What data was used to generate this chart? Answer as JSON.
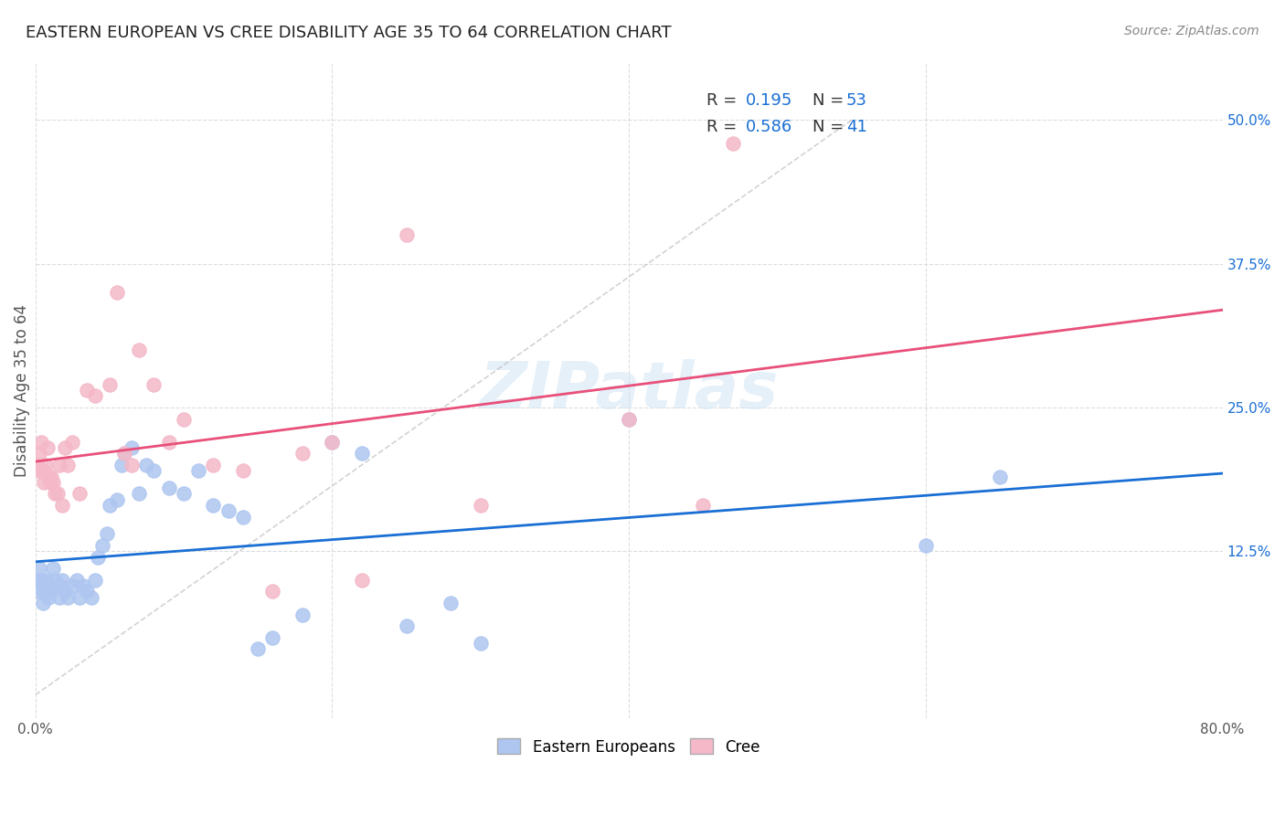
{
  "title": "EASTERN EUROPEAN VS CREE DISABILITY AGE 35 TO 64 CORRELATION CHART",
  "source": "Source: ZipAtlas.com",
  "xlabel": "",
  "ylabel": "Disability Age 35 to 64",
  "xlim": [
    0.0,
    0.8
  ],
  "ylim": [
    -0.02,
    0.55
  ],
  "xtick_labels": [
    "0.0%",
    "",
    "",
    "",
    "80.0%"
  ],
  "xtick_vals": [
    0.0,
    0.2,
    0.4,
    0.6,
    0.8
  ],
  "ytick_labels": [
    "12.5%",
    "25.0%",
    "37.5%",
    "50.0%"
  ],
  "ytick_vals": [
    0.125,
    0.25,
    0.375,
    0.5
  ],
  "r_eastern": 0.195,
  "n_eastern": 53,
  "r_cree": 0.586,
  "n_cree": 41,
  "eastern_color": "#aec6f0",
  "cree_color": "#f4b8c8",
  "trend_eastern_color": "#1a6fd4",
  "trend_cree_color": "#e8507a",
  "trend_eastern_dashed_color": "#c8c8c8",
  "background_color": "#ffffff",
  "grid_color": "#dddddd",
  "watermark": "ZIPatlas",
  "eastern_x": [
    0.001,
    0.002,
    0.003,
    0.004,
    0.005,
    0.006,
    0.007,
    0.008,
    0.009,
    0.01,
    0.012,
    0.013,
    0.015,
    0.016,
    0.017,
    0.018,
    0.02,
    0.022,
    0.025,
    0.028,
    0.03,
    0.032,
    0.035,
    0.038,
    0.04,
    0.042,
    0.045,
    0.048,
    0.05,
    0.055,
    0.058,
    0.06,
    0.065,
    0.07,
    0.075,
    0.08,
    0.09,
    0.1,
    0.11,
    0.12,
    0.13,
    0.14,
    0.15,
    0.16,
    0.18,
    0.2,
    0.22,
    0.25,
    0.28,
    0.3,
    0.4,
    0.6,
    0.65
  ],
  "eastern_y": [
    0.1,
    0.09,
    0.11,
    0.1,
    0.08,
    0.09,
    0.1,
    0.095,
    0.085,
    0.09,
    0.11,
    0.1,
    0.095,
    0.085,
    0.095,
    0.1,
    0.09,
    0.085,
    0.095,
    0.1,
    0.085,
    0.095,
    0.09,
    0.085,
    0.1,
    0.12,
    0.13,
    0.14,
    0.165,
    0.17,
    0.2,
    0.21,
    0.215,
    0.175,
    0.2,
    0.195,
    0.18,
    0.175,
    0.195,
    0.165,
    0.16,
    0.155,
    0.04,
    0.05,
    0.07,
    0.22,
    0.21,
    0.06,
    0.08,
    0.045,
    0.24,
    0.13,
    0.19
  ],
  "cree_x": [
    0.001,
    0.002,
    0.003,
    0.004,
    0.005,
    0.006,
    0.007,
    0.008,
    0.009,
    0.01,
    0.011,
    0.012,
    0.013,
    0.015,
    0.016,
    0.018,
    0.02,
    0.022,
    0.025,
    0.03,
    0.035,
    0.04,
    0.05,
    0.055,
    0.06,
    0.065,
    0.07,
    0.08,
    0.09,
    0.1,
    0.12,
    0.14,
    0.16,
    0.18,
    0.2,
    0.22,
    0.25,
    0.3,
    0.4,
    0.45,
    0.47
  ],
  "cree_y": [
    0.2,
    0.195,
    0.21,
    0.22,
    0.195,
    0.185,
    0.2,
    0.215,
    0.19,
    0.185,
    0.19,
    0.185,
    0.175,
    0.175,
    0.2,
    0.165,
    0.215,
    0.2,
    0.22,
    0.175,
    0.265,
    0.26,
    0.27,
    0.35,
    0.21,
    0.2,
    0.3,
    0.27,
    0.22,
    0.24,
    0.2,
    0.195,
    0.09,
    0.21,
    0.22,
    0.1,
    0.4,
    0.165,
    0.24,
    0.165,
    0.48
  ]
}
